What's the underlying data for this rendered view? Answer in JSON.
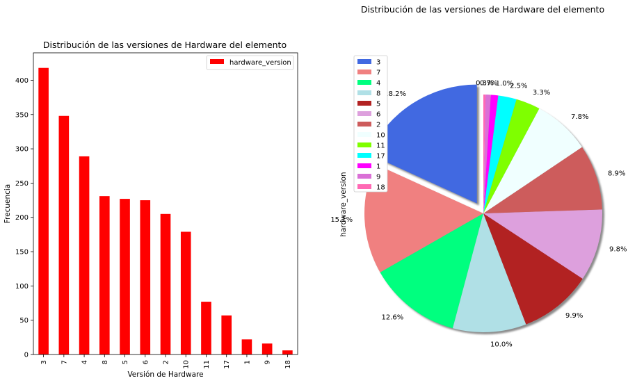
{
  "figure_title": "Distribución de las versiones de Hardware del elemento",
  "chart_data": [
    {
      "type": "bar",
      "title": "Distribución de las versiones de Hardware del elemento",
      "xlabel": "Versión de Hardware",
      "ylabel": "Frecuencia",
      "categories": [
        "3",
        "7",
        "4",
        "8",
        "5",
        "6",
        "2",
        "10",
        "11",
        "17",
        "1",
        "9",
        "18"
      ],
      "series": [
        {
          "name": "hardware_version",
          "values": [
            418,
            348,
            289,
            231,
            227,
            225,
            205,
            179,
            77,
            57,
            22,
            16,
            6
          ],
          "color": "#ff0000"
        }
      ],
      "ylim": [
        0,
        440
      ],
      "yticks": [
        0,
        50,
        100,
        150,
        200,
        250,
        300,
        350,
        400
      ],
      "legend": "top-right",
      "grid": false
    },
    {
      "type": "pie",
      "ylabel": "hardware_version",
      "categories": [
        "3",
        "7",
        "4",
        "8",
        "5",
        "6",
        "2",
        "10",
        "11",
        "17",
        "1",
        "9",
        "18"
      ],
      "labels": [
        "18.2%",
        "15.1%",
        "12.6%",
        "10.0%",
        "9.9%",
        "9.8%",
        "8.9%",
        "7.8%",
        "3.3%",
        "2.5%",
        "1.0%",
        "0.7%",
        "0.3%"
      ],
      "values": [
        18.2,
        15.1,
        12.6,
        10.0,
        9.9,
        9.8,
        8.9,
        7.8,
        3.3,
        2.5,
        1.0,
        0.7,
        0.3
      ],
      "colors": [
        "#4169e1",
        "#f08080",
        "#00ff7f",
        "#b0e0e6",
        "#b22222",
        "#dda0dd",
        "#cd5c5c",
        "#f0ffff",
        "#7fff00",
        "#00ffff",
        "#ff00ff",
        "#da70d6",
        "#ff69b4"
      ],
      "explode_first": true,
      "shadow": true,
      "start": "top",
      "direction": "counterclockwise",
      "legend": "upper-left"
    }
  ]
}
